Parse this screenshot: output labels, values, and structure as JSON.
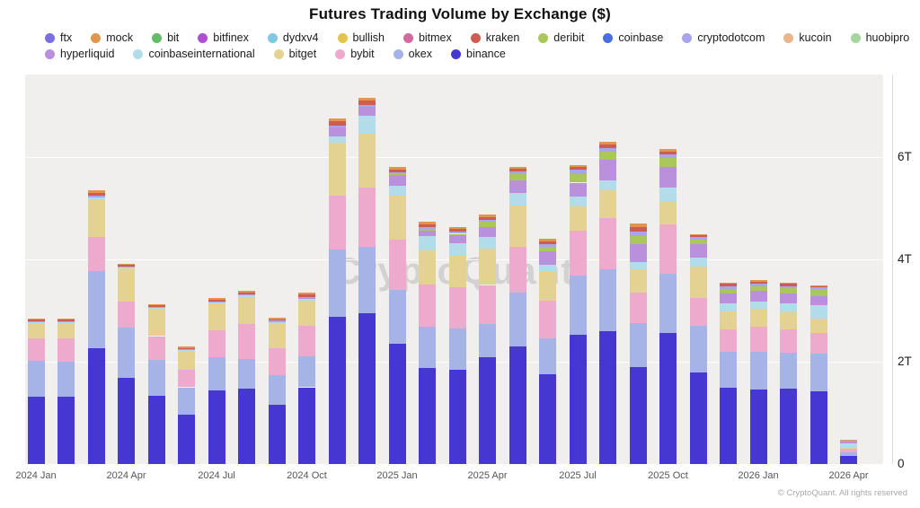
{
  "title": "Futures Trading Volume by Exchange ($)",
  "watermark": "CryptoQuant",
  "footer": "© CryptoQuant. All rights reserved",
  "legend": [
    {
      "name": "ftx",
      "color": "#7a6fe0"
    },
    {
      "name": "mock",
      "color": "#e0964f"
    },
    {
      "name": "bit",
      "color": "#66bb6a"
    },
    {
      "name": "bitfinex",
      "color": "#ad4fd1"
    },
    {
      "name": "dydxv4",
      "color": "#82c8e5"
    },
    {
      "name": "bullish",
      "color": "#e3c44e"
    },
    {
      "name": "bitmex",
      "color": "#d36a9e"
    },
    {
      "name": "kraken",
      "color": "#cf5c52"
    },
    {
      "name": "deribit",
      "color": "#a9c75b"
    },
    {
      "name": "coinbase",
      "color": "#4a6fdc"
    },
    {
      "name": "cryptodotcom",
      "color": "#a9a4ec"
    },
    {
      "name": "kucoin",
      "color": "#e7b68c"
    },
    {
      "name": "huobipro",
      "color": "#a5d6a0"
    },
    {
      "name": "hyperliquid",
      "color": "#ba90dc"
    },
    {
      "name": "coinbaseinternational",
      "color": "#b3dceb"
    },
    {
      "name": "bitget",
      "color": "#e3d291"
    },
    {
      "name": "bybit",
      "color": "#edaacd"
    },
    {
      "name": "okex",
      "color": "#a6b3e6"
    },
    {
      "name": "binance",
      "color": "#4636d2"
    }
  ],
  "y_axis": {
    "ticks": [
      {
        "label": "0",
        "value": 0
      },
      {
        "label": "2T",
        "value": 2
      },
      {
        "label": "4T",
        "value": 4
      },
      {
        "label": "6T",
        "value": 6
      }
    ]
  },
  "x_axis": {
    "shown_labels": [
      "2024 Jan",
      "2024 Apr",
      "2024 Jul",
      "2024 Oct",
      "2025 Jan",
      "2025 Apr",
      "2025 Jul",
      "2025 Oct",
      "2026 Jan",
      "2026 Apr"
    ]
  },
  "chart_data": {
    "type": "bar",
    "stacked": true,
    "title": "Futures Trading Volume by Exchange ($)",
    "unit": "trillion USD",
    "ylim": [
      0,
      7.5
    ],
    "grid": "horizontal",
    "legend_position": "top",
    "x": [
      "2024 Jan",
      "2024 Feb",
      "2024 Mar",
      "2024 Apr",
      "2024 May",
      "2024 Jun",
      "2024 Jul",
      "2024 Aug",
      "2024 Sep",
      "2024 Oct",
      "2024 Nov",
      "2024 Dec",
      "2025 Jan",
      "2025 Feb",
      "2025 Mar",
      "2025 Apr",
      "2025 May",
      "2025 Jun",
      "2025 Jul",
      "2025 Aug",
      "2025 Sep",
      "2025 Oct",
      "2025 Nov",
      "2025 Dec",
      "2026 Jan",
      "2026 Feb",
      "2026 Mar",
      "2026 Apr"
    ],
    "series": [
      {
        "name": "binance",
        "color": "#4636d2",
        "values": [
          1.32,
          1.32,
          2.27,
          1.68,
          1.33,
          0.97,
          1.43,
          1.47,
          1.15,
          1.5,
          2.88,
          2.95,
          2.35,
          1.88,
          1.85,
          2.09,
          2.3,
          1.75,
          2.53,
          2.6,
          1.9,
          2.57,
          1.79,
          1.49,
          1.45,
          1.48,
          1.42,
          0.15
        ]
      },
      {
        "name": "okex",
        "color": "#a6b3e6",
        "values": [
          0.7,
          0.68,
          1.5,
          0.99,
          0.71,
          0.53,
          0.65,
          0.58,
          0.58,
          0.6,
          1.31,
          1.3,
          1.06,
          0.8,
          0.8,
          0.65,
          1.05,
          0.7,
          1.15,
          1.2,
          0.85,
          1.15,
          0.92,
          0.7,
          0.75,
          0.7,
          0.73,
          0.08
        ]
      },
      {
        "name": "bybit",
        "color": "#edaacd",
        "values": [
          0.43,
          0.45,
          0.67,
          0.51,
          0.46,
          0.35,
          0.53,
          0.69,
          0.53,
          0.6,
          1.06,
          1.15,
          0.97,
          0.83,
          0.8,
          0.76,
          0.9,
          0.75,
          0.88,
          1.0,
          0.6,
          0.97,
          0.53,
          0.45,
          0.48,
          0.45,
          0.42,
          0.06
        ]
      },
      {
        "name": "bitget",
        "color": "#e3d291",
        "values": [
          0.3,
          0.3,
          0.74,
          0.64,
          0.53,
          0.35,
          0.53,
          0.53,
          0.5,
          0.5,
          1.03,
          1.05,
          0.87,
          0.67,
          0.62,
          0.71,
          0.8,
          0.55,
          0.48,
          0.55,
          0.45,
          0.44,
          0.62,
          0.35,
          0.35,
          0.33,
          0.28,
          0.05
        ]
      },
      {
        "name": "coinbaseinternational",
        "color": "#b3dceb",
        "values": [
          0.02,
          0.02,
          0.03,
          0.02,
          0.02,
          0.02,
          0.02,
          0.03,
          0.02,
          0.03,
          0.12,
          0.35,
          0.19,
          0.27,
          0.25,
          0.23,
          0.25,
          0.15,
          0.18,
          0.2,
          0.15,
          0.28,
          0.18,
          0.15,
          0.15,
          0.18,
          0.25,
          0.06
        ]
      },
      {
        "name": "hyperliquid",
        "color": "#ba90dc",
        "values": [
          0,
          0,
          0,
          0,
          0,
          0,
          0,
          0,
          0,
          0.02,
          0.18,
          0.18,
          0.21,
          0.12,
          0.15,
          0.2,
          0.25,
          0.25,
          0.28,
          0.4,
          0.35,
          0.39,
          0.25,
          0.2,
          0.2,
          0.2,
          0.18,
          0.03
        ]
      },
      {
        "name": "deribit",
        "color": "#a9c75b",
        "values": [
          0,
          0,
          0,
          0,
          0,
          0,
          0,
          0,
          0,
          0,
          0,
          0,
          0.02,
          0.03,
          0.03,
          0.1,
          0.12,
          0.1,
          0.16,
          0.15,
          0.15,
          0.18,
          0.1,
          0.08,
          0.09,
          0.09,
          0.14,
          0.02
        ]
      },
      {
        "name": "cryptodotcom",
        "color": "#a9a4ec",
        "values": [
          0.02,
          0.02,
          0.04,
          0.02,
          0.02,
          0.02,
          0.02,
          0.02,
          0.02,
          0.02,
          0.04,
          0.04,
          0.04,
          0.04,
          0.04,
          0.04,
          0.05,
          0.05,
          0.09,
          0.08,
          0.1,
          0.07,
          0.04,
          0.05,
          0.05,
          0.05,
          0.03,
          0.01
        ]
      },
      {
        "name": "kraken",
        "color": "#cf5c52",
        "values": [
          0.03,
          0.03,
          0.05,
          0.03,
          0.03,
          0.03,
          0.03,
          0.03,
          0.03,
          0.04,
          0.08,
          0.08,
          0.05,
          0.05,
          0.05,
          0.05,
          0.05,
          0.05,
          0.05,
          0.07,
          0.08,
          0.06,
          0.04,
          0.05,
          0.05,
          0.04,
          0.03,
          0.01
        ]
      },
      {
        "name": "mock",
        "color": "#e0964f",
        "values": [
          0.03,
          0.03,
          0.05,
          0.03,
          0.02,
          0.02,
          0.04,
          0.04,
          0.03,
          0.04,
          0.05,
          0.05,
          0.04,
          0.04,
          0.04,
          0.04,
          0.03,
          0.05,
          0.04,
          0.05,
          0.07,
          0.04,
          0.03,
          0.03,
          0.03,
          0.03,
          0.02,
          0.01
        ]
      }
    ]
  }
}
